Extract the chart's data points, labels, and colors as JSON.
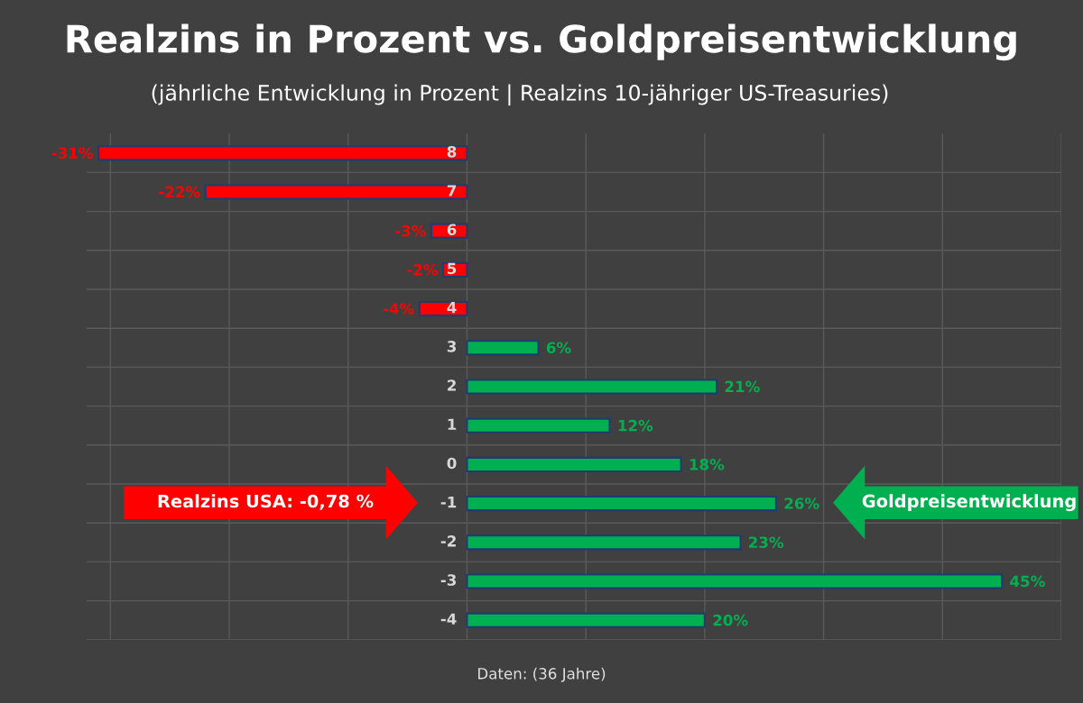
{
  "chart_data": {
    "type": "bar",
    "orientation": "horizontal",
    "title": "Realzins in Prozent vs. Goldpreisentwicklung",
    "subtitle": "(jährliche Entwicklung in Prozent | Realzins 10-jähriger US-Treasuries)",
    "categories": [
      "8",
      "7",
      "6",
      "5",
      "4",
      "3",
      "2",
      "1",
      "0",
      "-1",
      "-2",
      "-3",
      "-4"
    ],
    "values": [
      -31,
      -22,
      -3,
      -2,
      -4,
      6,
      21,
      12,
      18,
      26,
      23,
      45,
      20
    ],
    "value_labels": [
      "-31%",
      "-22%",
      "-3%",
      "-2%",
      "-4%",
      "6%",
      "21%",
      "12%",
      "18%",
      "26%",
      "23%",
      "45%",
      "20%"
    ],
    "colors": [
      "#ff0000",
      "#ff0000",
      "#ff0000",
      "#ff0000",
      "#ff0000",
      "#00b050",
      "#00b050",
      "#00b050",
      "#00b050",
      "#00b050",
      "#00b050",
      "#00b050",
      "#00b050"
    ],
    "xlim": [
      -32,
      50
    ],
    "xticks": [
      {
        "value": -30,
        "label": null
      },
      {
        "value": -20,
        "label": null
      },
      {
        "value": -10,
        "label": null
      },
      {
        "value": 0,
        "label": null
      },
      {
        "value": 10,
        "label": null
      },
      {
        "value": 20,
        "label": null
      },
      {
        "value": 30,
        "label": null
      },
      {
        "value": 40,
        "label": null
      },
      {
        "value": 50,
        "label": null
      }
    ],
    "tick_labels": "y",
    "grid": "x",
    "annotations": [
      "Realzins USA: -0,78 %",
      "Goldpreisentwicklung",
      "Daten: (36 Jahre)"
    ]
  }
}
